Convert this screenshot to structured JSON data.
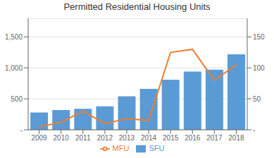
{
  "chart_data": {
    "type": "bar",
    "title": "Permitted Residential Housing Units",
    "categories": [
      "2009",
      "2010",
      "2011",
      "2012",
      "2013",
      "2014",
      "2015",
      "2016",
      "2017",
      "2018"
    ],
    "series": [
      {
        "name": "SFU",
        "type": "bar",
        "color": "#5B9BD5",
        "values": [
          280,
          320,
          340,
          380,
          540,
          660,
          810,
          940,
          970,
          1220
        ]
      },
      {
        "name": "MFU",
        "type": "line",
        "color": "#ED7D31",
        "axis": "y2",
        "values": [
          5,
          12,
          30,
          10,
          18,
          15,
          125,
          130,
          80,
          105
        ]
      }
    ],
    "ylim": [
      0,
      1800
    ],
    "yticks": [
      {
        "value": 0,
        "label": "-"
      },
      500,
      {
        "value": 1000,
        "label": "1,000"
      },
      {
        "value": 1500,
        "label": "1,500"
      }
    ],
    "y2lim": [
      0,
      180
    ],
    "y2ticks": [
      {
        "value": 0,
        "label": "-"
      },
      50,
      100,
      150
    ],
    "grid": true,
    "legend": "bottom"
  }
}
